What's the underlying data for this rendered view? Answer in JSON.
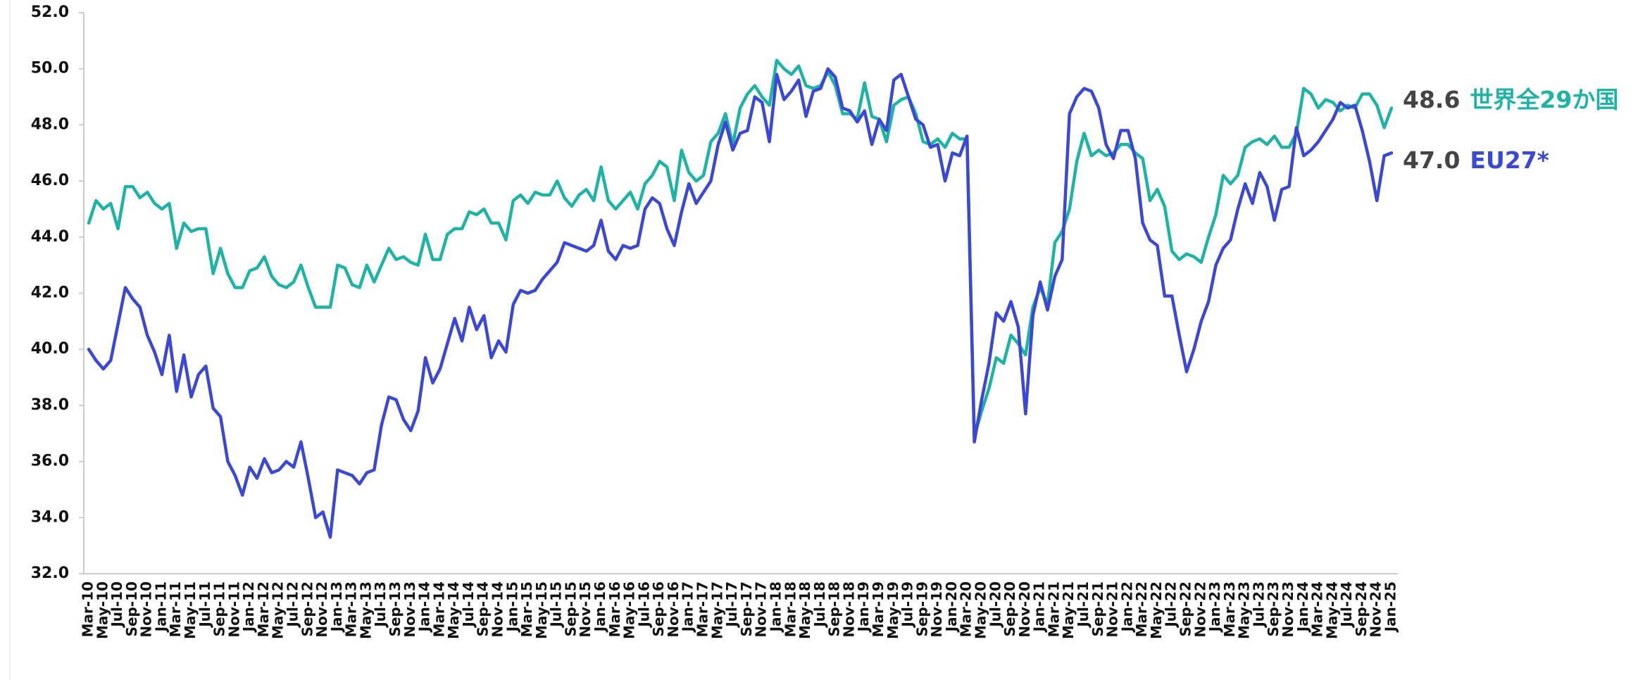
{
  "chart_data": {
    "type": "line",
    "categories": [
      "Mar-10",
      null,
      "May-10",
      null,
      "Jul-10",
      null,
      "Sep-10",
      null,
      "Nov-10",
      null,
      "Jan-11",
      null,
      "Mar-11",
      null,
      "May-11",
      null,
      "Jul-11",
      null,
      "Sep-11",
      null,
      "Nov-11",
      null,
      "Jan-12",
      null,
      "Mar-12",
      null,
      "May-12",
      null,
      "Jul-12",
      null,
      "Sep-12",
      null,
      "Nov-12",
      null,
      "Jan-13",
      null,
      "Mar-13",
      null,
      "May-13",
      null,
      "Jul-13",
      null,
      "Sep-13",
      null,
      "Nov-13",
      null,
      "Jan-14",
      null,
      "Mar-14",
      null,
      "May-14",
      null,
      "Jul-14",
      null,
      "Sep-14",
      null,
      "Nov-14",
      null,
      "Jan-15",
      null,
      "Mar-15",
      null,
      "May-15",
      null,
      "Jul-15",
      null,
      "Sep-15",
      null,
      "Nov-15",
      null,
      "Jan-16",
      null,
      "Mar-16",
      null,
      "May-16",
      null,
      "Jul-16",
      null,
      "Sep-16",
      null,
      "Nov-16",
      null,
      "Jan-17",
      null,
      "Mar-17",
      null,
      "May-17",
      null,
      "Jul-17",
      null,
      "Sep-17",
      null,
      "Nov-17",
      null,
      "Jan-18",
      null,
      "Mar-18",
      null,
      "May-18",
      null,
      "Jul-18",
      null,
      "Sep-18",
      null,
      "Nov-18",
      null,
      "Jan-19",
      null,
      "Mar-19",
      null,
      "May-19",
      null,
      "Jul-19",
      null,
      "Sep-19",
      null,
      "Nov-19",
      null,
      "Jan-20",
      null,
      "Mar-20",
      null,
      "May-20",
      null,
      "Jul-20",
      null,
      "Sep-20",
      null,
      "Nov-20",
      null,
      "Jan-21",
      null,
      "Mar-21",
      null,
      "May-21",
      null,
      "Jul-21",
      null,
      "Sep-21",
      null,
      "Nov-21",
      null,
      "Jan-22",
      null,
      "Mar-22",
      null,
      "May-22",
      null,
      "Jul-22",
      null,
      "Sep-22",
      null,
      "Nov-22",
      null,
      "Jan-23",
      null,
      "Mar-23",
      null,
      "May-23",
      null,
      "Jul-23",
      null,
      "Sep-23",
      null,
      "Nov-23",
      null,
      "Jan-24",
      null,
      "Mar-24",
      null,
      "May-24",
      null,
      "Jul-24",
      null,
      "Sep-24",
      null,
      "Nov-24",
      null,
      "Jan-25"
    ],
    "series": [
      {
        "name": "世界全29か国",
        "color": "#1fb3a5",
        "values": [
          44.5,
          45.3,
          45.0,
          45.2,
          44.3,
          45.8,
          45.8,
          45.4,
          45.6,
          45.2,
          45.0,
          45.2,
          43.6,
          44.5,
          44.2,
          44.3,
          44.3,
          42.7,
          43.6,
          42.7,
          42.2,
          42.2,
          42.8,
          42.9,
          43.3,
          42.6,
          42.3,
          42.2,
          42.4,
          43.0,
          42.2,
          41.5,
          41.5,
          41.5,
          43.0,
          42.9,
          42.3,
          42.2,
          43.0,
          42.4,
          43.0,
          43.6,
          43.2,
          43.3,
          43.1,
          43.0,
          44.1,
          43.2,
          43.2,
          44.1,
          44.3,
          44.3,
          44.9,
          44.8,
          45.0,
          44.5,
          44.5,
          43.9,
          45.3,
          45.5,
          45.2,
          45.6,
          45.5,
          45.5,
          46.0,
          45.4,
          45.1,
          45.5,
          45.7,
          45.3,
          46.5,
          45.3,
          45.0,
          45.3,
          45.6,
          45.0,
          45.9,
          46.2,
          46.7,
          46.5,
          45.3,
          47.1,
          46.3,
          46.0,
          46.2,
          47.4,
          47.7,
          48.4,
          47.3,
          48.6,
          49.1,
          49.4,
          49.0,
          48.7,
          50.3,
          50.0,
          49.8,
          50.1,
          49.4,
          49.3,
          49.4,
          49.9,
          49.4,
          48.4,
          48.4,
          48.2,
          49.5,
          48.3,
          48.2,
          47.4,
          48.7,
          48.9,
          49.0,
          48.4,
          47.4,
          47.3,
          47.5,
          47.2,
          47.7,
          47.5,
          47.5,
          36.9,
          37.8,
          38.6,
          39.7,
          39.5,
          40.5,
          40.2,
          39.8,
          41.5,
          42.2,
          41.6,
          43.8,
          44.2,
          45.0,
          46.7,
          47.7,
          46.9,
          47.1,
          46.9,
          47.0,
          47.3,
          47.3,
          47.0,
          46.8,
          45.3,
          45.7,
          45.1,
          43.5,
          43.2,
          43.4,
          43.3,
          43.1,
          44.0,
          44.8,
          46.2,
          45.9,
          46.2,
          47.2,
          47.4,
          47.5,
          47.3,
          47.6,
          47.2,
          47.2,
          47.7,
          49.3,
          49.1,
          48.6,
          48.9,
          48.8,
          48.5,
          48.7,
          48.6,
          49.1,
          49.1,
          48.7,
          47.9,
          48.6
        ],
        "value_labels": {
          "178": "48.6"
        }
      },
      {
        "name": "EU27*",
        "color": "#3b48d4",
        "values": [
          40.0,
          39.6,
          39.3,
          39.6,
          40.9,
          42.2,
          41.8,
          41.5,
          40.5,
          39.9,
          39.1,
          40.5,
          38.5,
          39.8,
          38.3,
          39.1,
          39.4,
          37.9,
          37.6,
          36.0,
          35.5,
          34.8,
          35.8,
          35.4,
          36.1,
          35.6,
          35.7,
          36.0,
          35.8,
          36.7,
          35.4,
          34.0,
          34.2,
          33.3,
          35.7,
          35.6,
          35.5,
          35.2,
          35.6,
          35.7,
          37.3,
          38.3,
          38.2,
          37.5,
          37.1,
          37.8,
          39.7,
          38.8,
          39.3,
          40.2,
          41.1,
          40.3,
          41.5,
          40.7,
          41.2,
          39.7,
          40.3,
          39.9,
          41.6,
          42.1,
          42.0,
          42.1,
          42.5,
          42.8,
          43.1,
          43.8,
          43.7,
          43.6,
          43.5,
          43.7,
          44.6,
          43.5,
          43.2,
          43.7,
          43.6,
          43.7,
          45.0,
          45.4,
          45.2,
          44.3,
          43.7,
          44.9,
          45.9,
          45.2,
          45.6,
          46.0,
          47.3,
          48.1,
          47.1,
          47.7,
          47.8,
          49.0,
          48.8,
          47.4,
          49.8,
          48.9,
          49.2,
          49.6,
          48.3,
          49.2,
          49.3,
          50.0,
          49.7,
          48.6,
          48.5,
          48.1,
          48.5,
          47.3,
          48.2,
          47.8,
          49.6,
          49.8,
          49.0,
          48.2,
          48.0,
          47.2,
          47.3,
          46.0,
          47.0,
          46.9,
          47.6,
          36.7,
          38.2,
          39.5,
          41.3,
          41.0,
          41.7,
          40.8,
          37.7,
          41.2,
          42.4,
          41.4,
          42.6,
          43.2,
          48.4,
          49.0,
          49.3,
          49.2,
          48.6,
          47.3,
          46.8,
          47.8,
          47.8,
          46.8,
          44.5,
          43.9,
          43.7,
          41.9,
          41.9,
          40.5,
          39.2,
          40.0,
          41.0,
          41.7,
          43.0,
          43.6,
          43.9,
          45.0,
          45.9,
          45.2,
          46.3,
          45.8,
          44.6,
          45.7,
          45.8,
          47.9,
          46.9,
          47.1,
          47.4,
          47.8,
          48.2,
          48.8,
          48.6,
          48.7,
          47.8,
          46.7,
          45.3,
          46.9,
          47.0
        ],
        "value_labels": {
          "178": "47.0"
        }
      }
    ],
    "ylim": [
      32,
      52
    ],
    "yticks": [
      {
        "value": 32,
        "label": "32.0"
      },
      {
        "value": 34,
        "label": "34.0"
      },
      {
        "value": 36,
        "label": "36.0"
      },
      {
        "value": 38,
        "label": "38.0"
      },
      {
        "value": 40,
        "label": "40.0"
      },
      {
        "value": 42,
        "label": "42.0"
      },
      {
        "value": 44,
        "label": "44.0"
      },
      {
        "value": 46,
        "label": "46.0"
      },
      {
        "value": 48,
        "label": "48.0"
      },
      {
        "value": 50,
        "label": "50.0"
      },
      {
        "value": 52,
        "label": "52.0"
      }
    ],
    "grid": false
  }
}
